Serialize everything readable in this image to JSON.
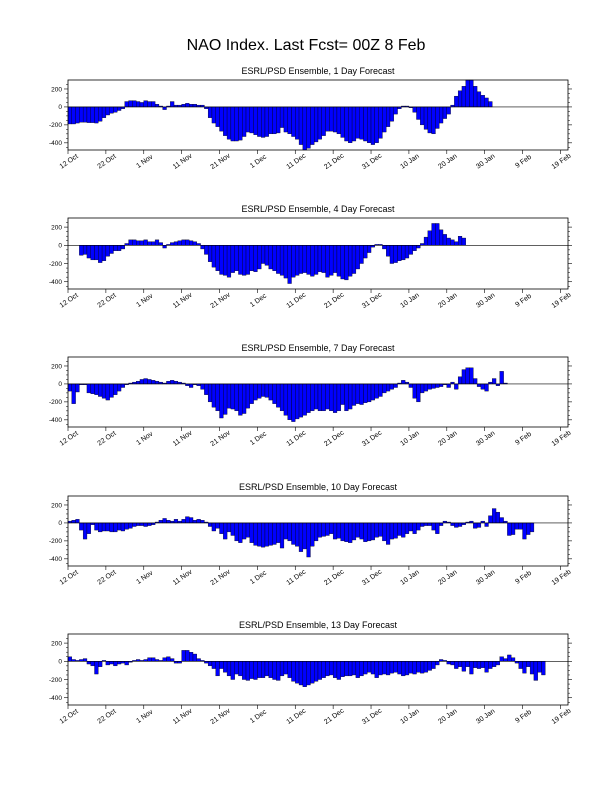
{
  "title": "NAO Index. Last Fcst= 00Z 8 Feb",
  "colors": {
    "bar": "#0000ff",
    "bar_edge": "#000000",
    "axis": "#000000",
    "background": "#ffffff"
  },
  "chart_data": [
    {
      "type": "bar",
      "title": "ESRL/PSD Ensemble, 1 Day Forecast",
      "xlabel": "",
      "ylabel": "",
      "ylim": [
        -480,
        300
      ],
      "yticks": [
        -400,
        -200,
        0,
        200
      ],
      "xlim": [
        0,
        132
      ],
      "xticks": [
        0,
        10,
        20,
        30,
        40,
        50,
        60,
        70,
        80,
        90,
        100,
        110,
        120,
        130
      ],
      "xticklabels": [
        "12 Oct",
        "22 Oct",
        "1 Nov",
        "11 Nov",
        "21 Nov",
        "1 Dec",
        "11 Dec",
        "21 Dec",
        "31 Dec",
        "10 Jan",
        "20 Jan",
        "30 Jan",
        "9 Feb",
        "19 Feb"
      ],
      "start_day": 0,
      "values": [
        -190,
        -190,
        -180,
        -170,
        -170,
        -175,
        -175,
        -180,
        -160,
        -120,
        -90,
        -70,
        -60,
        -40,
        -20,
        60,
        70,
        70,
        60,
        50,
        70,
        60,
        60,
        30,
        10,
        -30,
        10,
        60,
        20,
        20,
        30,
        40,
        30,
        30,
        20,
        20,
        -20,
        -120,
        -180,
        -220,
        -270,
        -320,
        -360,
        -380,
        -380,
        -370,
        -330,
        -280,
        -290,
        -310,
        -330,
        -340,
        -330,
        -300,
        -300,
        -290,
        -230,
        -280,
        -300,
        -330,
        -360,
        -420,
        -480,
        -460,
        -420,
        -390,
        -360,
        -320,
        -270,
        -270,
        -280,
        -300,
        -340,
        -380,
        -400,
        -380,
        -350,
        -360,
        -380,
        -400,
        -420,
        -400,
        -350,
        -280,
        -220,
        -160,
        -80,
        -20,
        10,
        10,
        -10,
        -60,
        -140,
        -200,
        -250,
        -290,
        -300,
        -240,
        -180,
        -130,
        -80,
        20,
        120,
        180,
        230,
        300,
        300,
        230,
        170,
        130,
        100,
        60
      ]
    },
    {
      "type": "bar",
      "title": "ESRL/PSD Ensemble, 4 Day Forecast",
      "xlabel": "",
      "ylabel": "",
      "ylim": [
        -480,
        300
      ],
      "yticks": [
        -400,
        -200,
        0,
        200
      ],
      "xlim": [
        0,
        132
      ],
      "xticks": [
        0,
        10,
        20,
        30,
        40,
        50,
        60,
        70,
        80,
        90,
        100,
        110,
        120,
        130
      ],
      "xticklabels": [
        "12 Oct",
        "22 Oct",
        "1 Nov",
        "11 Nov",
        "21 Nov",
        "1 Dec",
        "11 Dec",
        "21 Dec",
        "31 Dec",
        "10 Jan",
        "20 Jan",
        "30 Jan",
        "9 Feb",
        "19 Feb"
      ],
      "start_day": 3,
      "values": [
        -110,
        -100,
        -140,
        -160,
        -160,
        -190,
        -170,
        -120,
        -90,
        -60,
        -60,
        -40,
        20,
        60,
        60,
        50,
        50,
        60,
        40,
        40,
        60,
        30,
        -30,
        10,
        30,
        40,
        50,
        60,
        60,
        50,
        40,
        20,
        -40,
        -100,
        -180,
        -240,
        -280,
        -320,
        -330,
        -350,
        -300,
        -280,
        -320,
        -330,
        -320,
        -280,
        -290,
        -260,
        -200,
        -220,
        -260,
        -280,
        -310,
        -330,
        -360,
        -420,
        -350,
        -330,
        -310,
        -300,
        -320,
        -340,
        -320,
        -290,
        -300,
        -350,
        -330,
        -300,
        -340,
        -370,
        -380,
        -340,
        -310,
        -260,
        -200,
        -140,
        -80,
        -20,
        10,
        10,
        -40,
        -120,
        -200,
        -190,
        -170,
        -160,
        -140,
        -100,
        -60,
        -30,
        20,
        90,
        160,
        240,
        240,
        170,
        120,
        80,
        60,
        40,
        100,
        80
      ]
    },
    {
      "type": "bar",
      "title": "ESRL/PSD Ensemble, 7 Day Forecast",
      "xlabel": "",
      "ylabel": "",
      "ylim": [
        -480,
        300
      ],
      "yticks": [
        -400,
        -200,
        0,
        200
      ],
      "xlim": [
        0,
        132
      ],
      "xticks": [
        0,
        10,
        20,
        30,
        40,
        50,
        60,
        70,
        80,
        90,
        100,
        110,
        120,
        130
      ],
      "xticklabels": [
        "12 Oct",
        "22 Oct",
        "1 Nov",
        "11 Nov",
        "21 Nov",
        "1 Dec",
        "11 Dec",
        "21 Dec",
        "31 Dec",
        "10 Jan",
        "20 Jan",
        "30 Jan",
        "9 Feb",
        "19 Feb"
      ],
      "start_day": 0,
      "values": [
        -80,
        -220,
        -90,
        -10,
        -10,
        -100,
        -110,
        -120,
        -140,
        -160,
        -180,
        -150,
        -120,
        -80,
        -40,
        -10,
        10,
        20,
        30,
        50,
        60,
        50,
        40,
        30,
        20,
        10,
        30,
        40,
        30,
        20,
        10,
        -20,
        -40,
        -10,
        -20,
        -60,
        -120,
        -200,
        -260,
        -300,
        -380,
        -340,
        -270,
        -280,
        -300,
        -350,
        -330,
        -270,
        -220,
        -180,
        -160,
        -140,
        -150,
        -180,
        -220,
        -260,
        -300,
        -350,
        -400,
        -420,
        -390,
        -370,
        -350,
        -320,
        -300,
        -280,
        -300,
        -300,
        -280,
        -300,
        -320,
        -300,
        -230,
        -300,
        -280,
        -240,
        -220,
        -230,
        -210,
        -200,
        -180,
        -160,
        -140,
        -100,
        -80,
        -60,
        -40,
        10,
        40,
        20,
        -40,
        -160,
        -200,
        -100,
        -80,
        -60,
        -50,
        -40,
        -30,
        -10,
        -40,
        20,
        -60,
        80,
        160,
        180,
        180,
        60,
        -30,
        -60,
        -80,
        20,
        60,
        -20,
        140,
        10
      ]
    },
    {
      "type": "bar",
      "title": "ESRL/PSD Ensemble, 10 Day Forecast",
      "xlabel": "",
      "ylabel": "",
      "ylim": [
        -480,
        300
      ],
      "yticks": [
        -400,
        -200,
        0,
        200
      ],
      "xlim": [
        0,
        132
      ],
      "xticks": [
        0,
        10,
        20,
        30,
        40,
        50,
        60,
        70,
        80,
        90,
        100,
        110,
        120,
        130
      ],
      "xticklabels": [
        "12 Oct",
        "22 Oct",
        "1 Nov",
        "11 Nov",
        "21 Nov",
        "1 Dec",
        "11 Dec",
        "21 Dec",
        "31 Dec",
        "10 Jan",
        "20 Jan",
        "30 Jan",
        "9 Feb",
        "19 Feb"
      ],
      "start_day": 0,
      "values": [
        20,
        30,
        40,
        -80,
        -180,
        -120,
        -20,
        -80,
        -100,
        -90,
        -90,
        -100,
        -100,
        -80,
        -90,
        -70,
        -60,
        -40,
        -30,
        -30,
        -40,
        -30,
        -20,
        10,
        30,
        50,
        30,
        20,
        40,
        20,
        40,
        70,
        60,
        30,
        40,
        30,
        10,
        -40,
        -90,
        -60,
        -120,
        -180,
        -100,
        -140,
        -200,
        -220,
        -180,
        -160,
        -220,
        -250,
        -260,
        -270,
        -260,
        -250,
        -240,
        -220,
        -280,
        -180,
        -200,
        -240,
        -260,
        -320,
        -290,
        -380,
        -260,
        -200,
        -160,
        -150,
        -140,
        -120,
        -180,
        -170,
        -200,
        -210,
        -220,
        -190,
        -160,
        -180,
        -210,
        -200,
        -190,
        -160,
        -150,
        -200,
        -240,
        -180,
        -170,
        -140,
        -160,
        -120,
        -90,
        -120,
        -80,
        -40,
        -30,
        -30,
        -80,
        -120,
        -30,
        20,
        10,
        -30,
        -50,
        -40,
        -20,
        10,
        20,
        -60,
        -50,
        20,
        -40,
        80,
        160,
        120,
        60,
        20,
        -140,
        -130,
        -70,
        -70,
        -180,
        -130,
        -100
      ]
    },
    {
      "type": "bar",
      "title": "ESRL/PSD Ensemble, 13 Day Forecast",
      "xlabel": "",
      "ylabel": "",
      "ylim": [
        -480,
        300
      ],
      "yticks": [
        -400,
        -200,
        0,
        200
      ],
      "xlim": [
        0,
        132
      ],
      "xticks": [
        0,
        10,
        20,
        30,
        40,
        50,
        60,
        70,
        80,
        90,
        100,
        110,
        120,
        130
      ],
      "xticklabels": [
        "12 Oct",
        "22 Oct",
        "1 Nov",
        "11 Nov",
        "21 Nov",
        "1 Dec",
        "11 Dec",
        "21 Dec",
        "31 Dec",
        "10 Jan",
        "20 Jan",
        "30 Jan",
        "9 Feb",
        "19 Feb"
      ],
      "start_day": 0,
      "values": [
        50,
        20,
        10,
        20,
        30,
        -30,
        -50,
        -140,
        -60,
        10,
        -40,
        -30,
        -50,
        -30,
        -20,
        -40,
        -10,
        10,
        20,
        10,
        20,
        40,
        40,
        20,
        10,
        40,
        50,
        30,
        -20,
        -20,
        120,
        120,
        100,
        80,
        30,
        10,
        -20,
        -50,
        -80,
        -160,
        -80,
        -120,
        -160,
        -200,
        -140,
        -160,
        -200,
        -210,
        -190,
        -200,
        -180,
        -180,
        -160,
        -180,
        -200,
        -210,
        -160,
        -140,
        -180,
        -220,
        -240,
        -260,
        -280,
        -260,
        -240,
        -220,
        -200,
        -180,
        -160,
        -150,
        -180,
        -200,
        -170,
        -160,
        -160,
        -150,
        -180,
        -160,
        -140,
        -120,
        -140,
        -180,
        -150,
        -140,
        -150,
        -130,
        -120,
        -140,
        -160,
        -150,
        -130,
        -140,
        -120,
        -130,
        -120,
        -100,
        -80,
        -40,
        20,
        10,
        -30,
        -40,
        -80,
        -60,
        -110,
        -60,
        -140,
        -70,
        -80,
        -70,
        -120,
        -80,
        -60,
        -40,
        50,
        30,
        70,
        40,
        -20,
        -80,
        -130,
        -60,
        -140,
        -210,
        -120,
        -150
      ]
    }
  ]
}
